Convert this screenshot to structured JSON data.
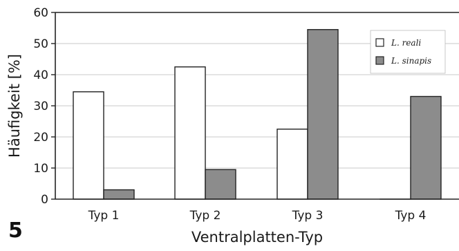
{
  "panel_label": "5",
  "chart_data": {
    "type": "bar",
    "categories": [
      "Typ 1",
      "Typ 2",
      "Typ 3",
      "Typ 4"
    ],
    "series": [
      {
        "name": "L. reali",
        "values": [
          34.5,
          42.5,
          22.5,
          0
        ],
        "color": "#ffffff"
      },
      {
        "name": "L. sinapis",
        "values": [
          3,
          9.5,
          54.5,
          33
        ],
        "color": "#8c8c8c"
      }
    ],
    "xlabel": "Ventralplatten-Typ",
    "ylabel": "Häufigkeit [%]",
    "ylim": [
      0,
      60
    ],
    "yticks": [
      0,
      10,
      20,
      30,
      40,
      50,
      60
    ],
    "grid": true,
    "legend": "top-right"
  }
}
